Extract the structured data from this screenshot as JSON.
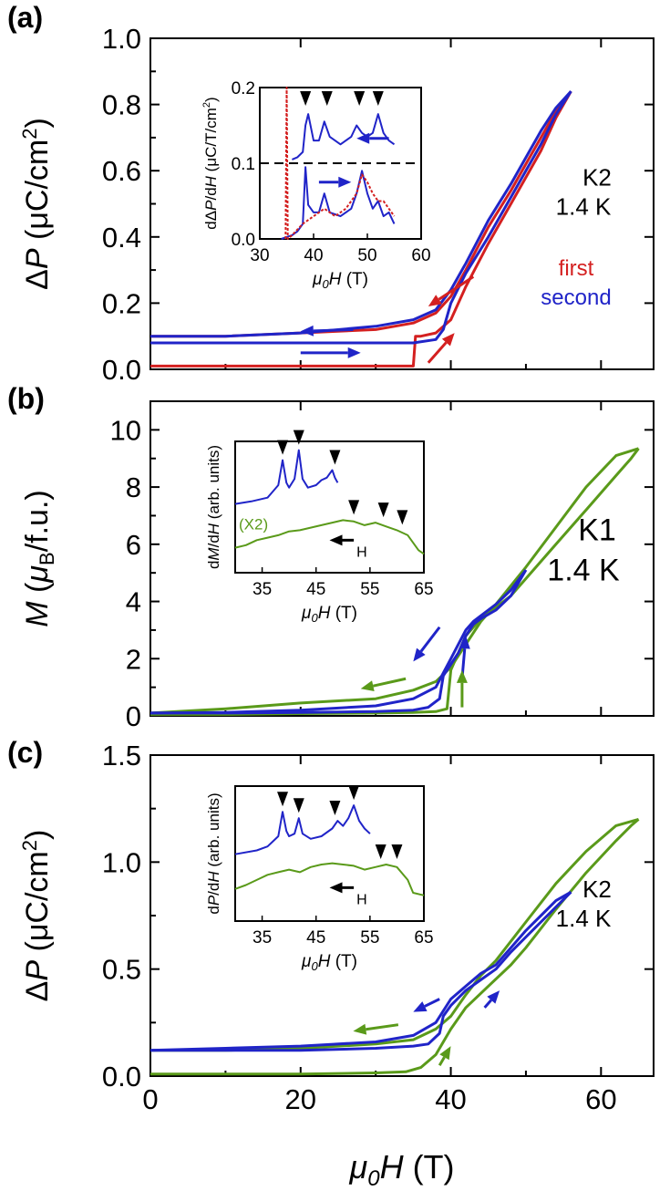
{
  "colors": {
    "red": "#d42020",
    "blue": "#2024c8",
    "green": "#5a9a1a",
    "black": "#000000"
  },
  "common_x": {
    "label": "μ0H (T)",
    "ticks": [
      0,
      20,
      40,
      60
    ],
    "xlim": [
      0,
      67
    ]
  },
  "chart_data": [
    {
      "type": "line",
      "panel_label": "(a)",
      "ylabel": "ΔP (μC/cm2)",
      "ylim": [
        0,
        1.0
      ],
      "yticks": [
        0.0,
        0.2,
        0.4,
        0.6,
        0.8,
        1.0
      ],
      "annotations": [
        "K2",
        "1.4 K"
      ],
      "legend": [
        {
          "label": "first",
          "color": "red"
        },
        {
          "label": "second",
          "color": "blue"
        }
      ],
      "series": [
        {
          "name": "first",
          "color": "red",
          "x": [
            0,
            10,
            20,
            30,
            35,
            35.3,
            36,
            38,
            40,
            42,
            45,
            48,
            50,
            52,
            54,
            56
          ],
          "y": [
            0.01,
            0.01,
            0.01,
            0.01,
            0.01,
            0.1,
            0.1,
            0.11,
            0.15,
            0.25,
            0.38,
            0.5,
            0.58,
            0.66,
            0.76,
            0.84
          ]
        },
        {
          "name": "first",
          "color": "red",
          "x": [
            56,
            54,
            52,
            50,
            48,
            45,
            42,
            40,
            38,
            35,
            30,
            20,
            10,
            0
          ],
          "y": [
            0.84,
            0.78,
            0.7,
            0.62,
            0.54,
            0.43,
            0.3,
            0.22,
            0.17,
            0.14,
            0.12,
            0.11,
            0.1,
            0.1
          ]
        },
        {
          "name": "second",
          "color": "blue",
          "x": [
            0,
            10,
            20,
            30,
            35,
            38,
            39,
            40,
            42,
            45,
            48,
            50,
            52,
            54,
            56
          ],
          "y": [
            0.08,
            0.08,
            0.08,
            0.08,
            0.08,
            0.09,
            0.12,
            0.2,
            0.29,
            0.4,
            0.52,
            0.6,
            0.68,
            0.77,
            0.84
          ]
        },
        {
          "name": "second",
          "color": "blue",
          "x": [
            56,
            54,
            52,
            50,
            48,
            45,
            42,
            40,
            38,
            35,
            30,
            20,
            10,
            0
          ],
          "y": [
            0.84,
            0.79,
            0.72,
            0.64,
            0.56,
            0.45,
            0.32,
            0.24,
            0.18,
            0.15,
            0.13,
            0.11,
            0.1,
            0.1
          ]
        }
      ],
      "inset": {
        "ylabel": "dΔP/dH (μC/T/cm2)",
        "xlabel": "μ0H (T)",
        "xlim": [
          30,
          60
        ],
        "ylim": [
          0,
          0.2
        ],
        "xticks": [
          30,
          40,
          50,
          60
        ],
        "yticks": [
          0.0,
          0.1,
          0.2
        ],
        "series": [
          {
            "name": "second down",
            "color": "blue",
            "x": [
              36,
              37,
              38,
              38.5,
              39,
              40,
              41,
              42,
              43,
              45,
              47,
              48,
              49,
              50,
              51,
              52,
              53,
              54,
              55
            ],
            "y": [
              0.105,
              0.108,
              0.115,
              0.15,
              0.165,
              0.13,
              0.13,
              0.155,
              0.135,
              0.125,
              0.135,
              0.15,
              0.14,
              0.135,
              0.14,
              0.165,
              0.14,
              0.13,
              0.125
            ]
          },
          {
            "name": "second up",
            "color": "blue",
            "x": [
              34,
              36,
              37,
              38,
              38.5,
              39,
              40,
              41,
              42,
              43,
              45,
              47,
              48,
              49,
              50,
              51,
              52,
              53,
              54,
              55
            ],
            "y": [
              0.0,
              0.005,
              0.01,
              0.02,
              0.095,
              0.045,
              0.035,
              0.035,
              0.06,
              0.035,
              0.03,
              0.04,
              0.06,
              0.09,
              0.06,
              0.04,
              0.05,
              0.03,
              0.035,
              0.02
            ]
          },
          {
            "name": "first up",
            "color": "red",
            "x": [
              34.8,
              35.0,
              35.2,
              36,
              38,
              40,
              42,
              44,
              46,
              48,
              49,
              50,
              51,
              52,
              53,
              54,
              55
            ],
            "y": [
              0.0,
              0.2,
              0.0,
              0.005,
              0.02,
              0.03,
              0.04,
              0.03,
              0.04,
              0.06,
              0.085,
              0.075,
              0.06,
              0.05,
              0.05,
              0.04,
              0.03
            ]
          }
        ],
        "markers_x": [
          38.5,
          42.5,
          48.5,
          52
        ]
      }
    },
    {
      "type": "line",
      "panel_label": "(b)",
      "ylabel": "M (μB/f.u.)",
      "ylim": [
        0,
        11
      ],
      "yticks": [
        0,
        2,
        4,
        6,
        8,
        10
      ],
      "annotations": [
        "K1",
        "1.4 K"
      ],
      "series": [
        {
          "name": "up-green",
          "color": "green",
          "x": [
            0,
            10,
            20,
            30,
            35,
            38,
            39.5,
            40,
            42,
            44,
            46,
            48,
            50,
            54,
            58,
            62,
            64,
            65
          ],
          "y": [
            0.05,
            0.05,
            0.08,
            0.1,
            0.12,
            0.15,
            0.25,
            1.6,
            2.8,
            3.4,
            3.8,
            4.2,
            4.8,
            6.0,
            7.2,
            8.4,
            9.0,
            9.35
          ]
        },
        {
          "name": "down-green",
          "color": "green",
          "x": [
            65,
            62,
            58,
            54,
            50,
            46,
            44,
            42,
            40,
            38,
            35,
            30,
            20,
            10,
            0
          ],
          "y": [
            9.35,
            9.1,
            8.0,
            6.6,
            5.2,
            3.9,
            3.3,
            2.5,
            1.7,
            1.2,
            0.9,
            0.6,
            0.45,
            0.25,
            0.1
          ]
        },
        {
          "name": "up-blue",
          "color": "blue",
          "x": [
            0,
            10,
            20,
            30,
            35,
            37,
            38.5,
            39,
            40,
            41,
            42,
            43,
            44,
            46,
            48,
            50
          ],
          "y": [
            0.1,
            0.1,
            0.12,
            0.15,
            0.2,
            0.3,
            0.6,
            1.4,
            1.8,
            2.2,
            2.8,
            3.2,
            3.4,
            3.7,
            4.2,
            5.1
          ]
        },
        {
          "name": "down-blue",
          "color": "blue",
          "x": [
            50,
            48,
            46,
            44,
            43,
            42,
            41,
            40,
            39,
            38,
            35,
            30,
            20,
            10,
            0
          ],
          "y": [
            5.1,
            4.4,
            3.9,
            3.5,
            3.3,
            3.0,
            2.5,
            2.0,
            1.5,
            1.0,
            0.6,
            0.35,
            0.2,
            0.12,
            0.1
          ]
        }
      ],
      "inset": {
        "ylabel": "dM/dH (arb. units)",
        "xlabel": "μ0H (T)",
        "xlim": [
          30,
          65
        ],
        "xticks": [
          35,
          45,
          55,
          65
        ],
        "annotations": [
          "(X2)",
          "H"
        ],
        "series": [
          {
            "name": "blue",
            "color": "blue",
            "x": [
              30,
              33,
              36,
              37,
              38,
              38.8,
              39.5,
              40,
              41,
              41.8,
              42.5,
              43.5,
              45,
              46,
              47,
              48,
              48.5,
              49
            ],
            "y": [
              0.55,
              0.57,
              0.6,
              0.65,
              0.7,
              0.9,
              0.72,
              0.68,
              0.75,
              0.98,
              0.75,
              0.68,
              0.7,
              0.74,
              0.76,
              0.82,
              0.76,
              0.72
            ]
          },
          {
            "name": "green",
            "color": "green",
            "x": [
              30,
              32,
              34,
              36,
              38,
              40,
              42,
              44,
              46,
              48,
              50,
              52,
              54,
              56,
              58,
              60,
              62,
              64,
              65
            ],
            "y": [
              0.2,
              0.22,
              0.26,
              0.28,
              0.3,
              0.33,
              0.34,
              0.36,
              0.38,
              0.4,
              0.42,
              0.41,
              0.38,
              0.4,
              0.37,
              0.34,
              0.3,
              0.18,
              0.15
            ]
          }
        ],
        "markers_x": [
          38.8,
          41.8,
          48.5,
          52,
          57.5,
          61
        ]
      }
    },
    {
      "type": "line",
      "panel_label": "(c)",
      "ylabel": "ΔP (μC/cm2)",
      "ylim": [
        0,
        1.5
      ],
      "yticks": [
        0.0,
        0.5,
        1.0,
        1.5
      ],
      "annotations": [
        "K2",
        "1.4 K"
      ],
      "series": [
        {
          "name": "up-green",
          "color": "green",
          "x": [
            0,
            10,
            20,
            30,
            34,
            36,
            38,
            40,
            42,
            45,
            48,
            50,
            54,
            58,
            62,
            64,
            65
          ],
          "y": [
            0.01,
            0.01,
            0.01,
            0.015,
            0.02,
            0.04,
            0.1,
            0.22,
            0.32,
            0.42,
            0.52,
            0.6,
            0.78,
            0.95,
            1.1,
            1.17,
            1.2
          ]
        },
        {
          "name": "down-green",
          "color": "green",
          "x": [
            65,
            62,
            58,
            54,
            50,
            46,
            44,
            42,
            40,
            38,
            35,
            30,
            20,
            10,
            0
          ],
          "y": [
            1.2,
            1.17,
            1.05,
            0.9,
            0.72,
            0.54,
            0.47,
            0.38,
            0.28,
            0.22,
            0.17,
            0.15,
            0.13,
            0.12,
            0.12
          ]
        },
        {
          "name": "up-blue",
          "color": "blue",
          "x": [
            0,
            10,
            20,
            30,
            35,
            37,
            38.5,
            39,
            40,
            42,
            44,
            46,
            48,
            50,
            52,
            54,
            56
          ],
          "y": [
            0.12,
            0.12,
            0.12,
            0.13,
            0.14,
            0.15,
            0.2,
            0.28,
            0.33,
            0.4,
            0.45,
            0.5,
            0.58,
            0.65,
            0.72,
            0.79,
            0.86
          ]
        },
        {
          "name": "down-blue",
          "color": "blue",
          "x": [
            56,
            54,
            52,
            50,
            48,
            46,
            44,
            42,
            40,
            38,
            35,
            30,
            20,
            10,
            0
          ],
          "y": [
            0.86,
            0.82,
            0.75,
            0.68,
            0.6,
            0.52,
            0.48,
            0.42,
            0.36,
            0.25,
            0.19,
            0.16,
            0.14,
            0.13,
            0.12
          ]
        }
      ],
      "inset": {
        "ylabel": "dP/dH (arb. units)",
        "xlabel": "μ0H (T)",
        "xlim": [
          30,
          65
        ],
        "xticks": [
          35,
          45,
          55,
          65
        ],
        "annotations": [
          "H"
        ],
        "series": [
          {
            "name": "blue",
            "color": "blue",
            "x": [
              30,
              34,
              36,
              37,
              38,
              38.8,
              39.5,
              40,
              41,
              41.8,
              42.5,
              44,
              46,
              48,
              49,
              50,
              51,
              52,
              53,
              54,
              55
            ],
            "y": [
              0.52,
              0.55,
              0.58,
              0.62,
              0.66,
              0.85,
              0.7,
              0.66,
              0.68,
              0.8,
              0.68,
              0.64,
              0.66,
              0.72,
              0.78,
              0.74,
              0.8,
              0.9,
              0.78,
              0.72,
              0.68
            ]
          },
          {
            "name": "green",
            "color": "green",
            "x": [
              30,
              32,
              34,
              36,
              38,
              40,
              42,
              44,
              46,
              48,
              50,
              52,
              54,
              56,
              58,
              60,
              62,
              63,
              65
            ],
            "y": [
              0.25,
              0.28,
              0.32,
              0.36,
              0.38,
              0.4,
              0.38,
              0.42,
              0.44,
              0.45,
              0.44,
              0.43,
              0.4,
              0.42,
              0.44,
              0.42,
              0.32,
              0.22,
              0.2
            ]
          }
        ],
        "markers_x": [
          38.8,
          41.8,
          48.5,
          52,
          57,
          60
        ]
      }
    }
  ]
}
